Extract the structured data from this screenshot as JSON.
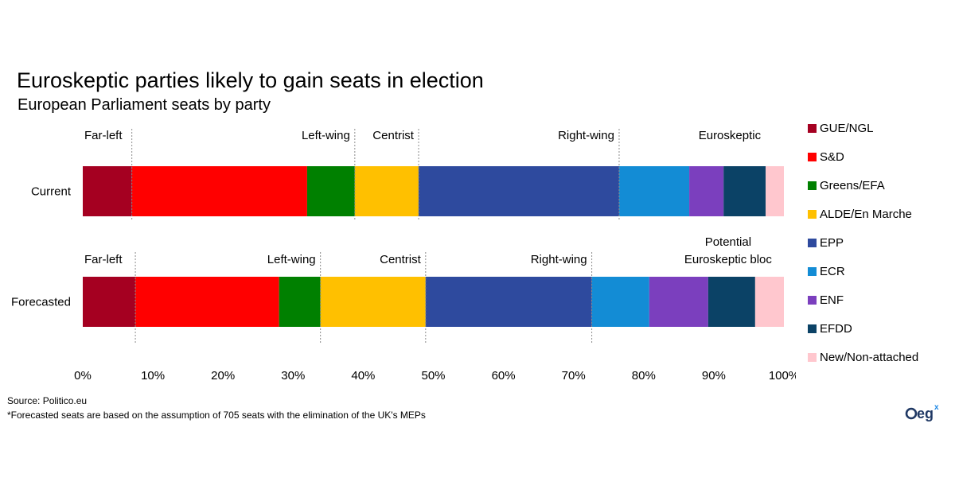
{
  "chart_data": {
    "type": "bar",
    "orientation": "horizontal",
    "stacked": "percent",
    "title": "Euroskeptic parties likely to gain seats in election",
    "subtitle": "European Parliament seats by party",
    "categories": [
      "Current",
      "Forecasted"
    ],
    "series": [
      {
        "name": "GUE/NGL",
        "color": "#A50021",
        "values": [
          7,
          7.5
        ]
      },
      {
        "name": "S&D",
        "color": "#FF0000",
        "values": [
          25,
          20.5
        ]
      },
      {
        "name": "Greens/EFA",
        "color": "#008000",
        "values": [
          6.8,
          5.9
        ]
      },
      {
        "name": "ALDE/En Marche",
        "color": "#FFC000",
        "values": [
          9.1,
          15
        ]
      },
      {
        "name": "EPP",
        "color": "#2E4A9E",
        "values": [
          28.6,
          23.7
        ]
      },
      {
        "name": "ECR",
        "color": "#138CD5",
        "values": [
          10,
          8.2
        ]
      },
      {
        "name": "ENF",
        "color": "#7B3FBE",
        "values": [
          4.9,
          8.4
        ]
      },
      {
        "name": "EFDD",
        "color": "#0B4266",
        "values": [
          6,
          6.7
        ]
      },
      {
        "name": "New/Non-attached",
        "color": "#FFC7CE",
        "values": [
          2.6,
          4.1
        ]
      }
    ],
    "xlim": [
      0,
      100
    ],
    "x_ticks": [
      "0%",
      "10%",
      "20%",
      "30%",
      "40%",
      "50%",
      "60%",
      "70%",
      "80%",
      "90%",
      "100%"
    ],
    "grid": false,
    "legend_position": "right",
    "annotations": {
      "Current": [
        {
          "label": "Far-left",
          "divider_at": 7
        },
        {
          "label": "Left-wing",
          "divider_at": 38.8
        },
        {
          "label": "Centrist",
          "divider_at": 47.9
        },
        {
          "label": "Right-wing",
          "divider_at": 76.5
        },
        {
          "label": "Euroskeptic",
          "divider_at": 97.4
        }
      ],
      "Forecasted": [
        {
          "label": "Far-left",
          "divider_at": 7.5
        },
        {
          "label": "Left-wing",
          "divider_at": 33.9
        },
        {
          "label": "Centrist",
          "divider_at": 48.9
        },
        {
          "label": "Right-wing",
          "divider_at": 72.6
        },
        {
          "label": "Potential Euroskeptic bloc",
          "divider_at": 95.9
        }
      ]
    }
  },
  "footer": {
    "source": "Source: Politico.eu",
    "note": "*Forecasted seats are based on the assumption of 705 seats with the elimination of the UK's MEPs"
  },
  "logo": {
    "text": "eg",
    "superscript": "x",
    "color": "#1F3864"
  }
}
